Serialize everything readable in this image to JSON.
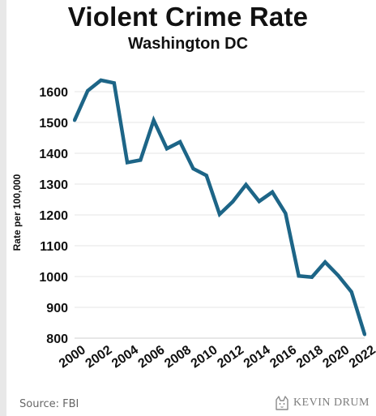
{
  "page": {
    "source": "Source: FBI",
    "branding": "KEVIN DRUM",
    "branding_icon": "cat-head-icon"
  },
  "chart_data": {
    "type": "line",
    "title": "Violent Crime Rate",
    "subtitle": "Washington DC",
    "xlabel": "",
    "ylabel": "Rate per 100,000",
    "x": [
      2000,
      2001,
      2002,
      2003,
      2004,
      2005,
      2006,
      2007,
      2008,
      2009,
      2010,
      2011,
      2012,
      2013,
      2014,
      2015,
      2016,
      2017,
      2018,
      2019,
      2020,
      2021,
      2022
    ],
    "series": [
      {
        "name": "",
        "values": [
          1507,
          1603,
          1637,
          1628,
          1370,
          1378,
          1507,
          1415,
          1437,
          1350,
          1328,
          1202,
          1243,
          1298,
          1244,
          1274,
          1205,
          1002,
          998,
          1047,
          1003,
          950,
          812
        ]
      }
    ],
    "xticks": [
      "2000",
      "2002",
      "2004",
      "2006",
      "2008",
      "2010",
      "2012",
      "2014",
      "2016",
      "2018",
      "2020",
      "2022"
    ],
    "yticks": [
      800,
      900,
      1000,
      1100,
      1200,
      1300,
      1400,
      1500,
      1600
    ],
    "xlim": [
      2000,
      2022
    ],
    "ylim": [
      800,
      1650
    ],
    "grid": "horizontal",
    "legend": "none",
    "colors": {
      "line": "#1d6587",
      "grid": "#e6e6e6",
      "text": "#111111"
    }
  }
}
